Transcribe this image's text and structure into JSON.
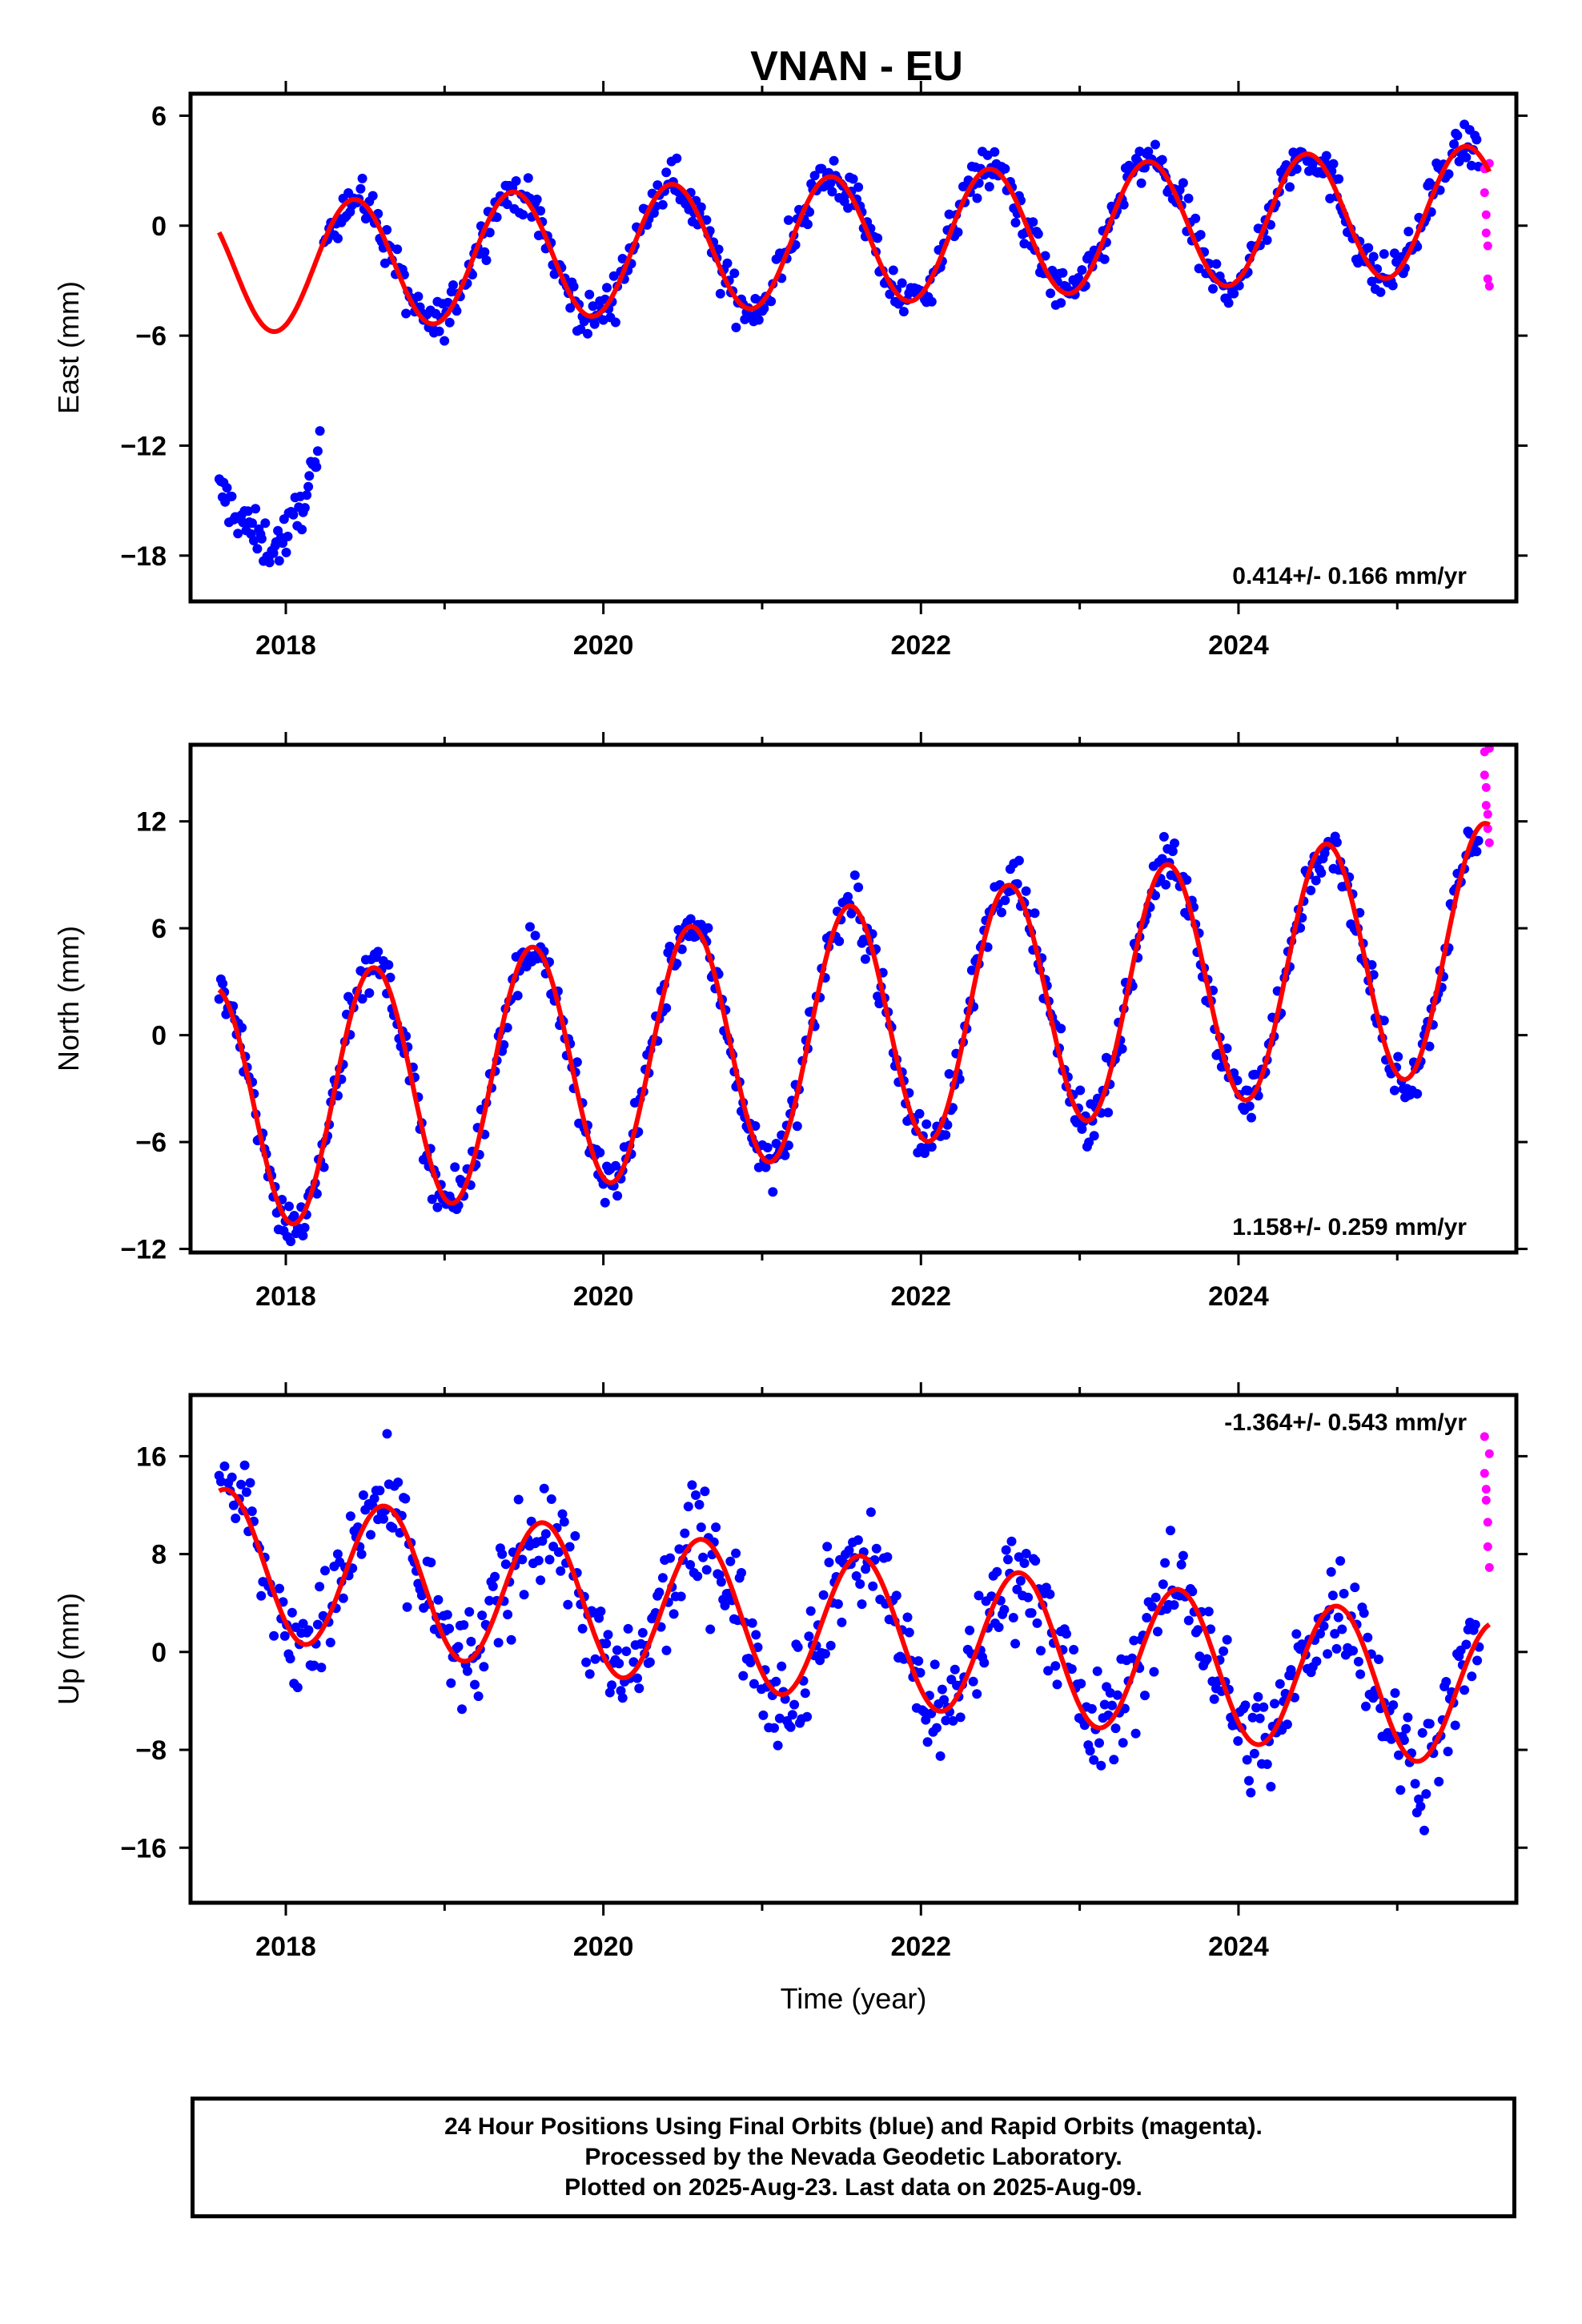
{
  "title": "VNAN - EU",
  "colors": {
    "final": "#0000ff",
    "rapid": "#ff00ff",
    "fit": "#ff0000",
    "frame": "#000000"
  },
  "footer": {
    "line1": "24 Hour Positions Using Final Orbits (blue) and Rapid Orbits (magenta).",
    "line2": "Processed by the Nevada Geodetic Laboratory.",
    "line3": "Plotted on 2025-Aug-23. Last data on 2025-Aug-09."
  },
  "chart_data": [
    {
      "type": "scatter",
      "component": "east",
      "ylabel": "East (mm)",
      "xlabel": "",
      "xlim": [
        2017.4,
        2025.75
      ],
      "ylim": [
        -20.5,
        7.2
      ],
      "xticks": [
        2018,
        2020,
        2022,
        2024
      ],
      "yticks": [
        -18,
        -12,
        -6,
        0,
        6
      ],
      "rate_label": "0.414+/- 0.166 mm/yr",
      "rate_position": "bottom-right",
      "fit": {
        "a0": -0.8,
        "trend": 0.414,
        "t0": 2021.5,
        "amp": 3.5,
        "peak": 2018.43,
        "period": 1.0
      },
      "series": [
        {
          "kind": "final",
          "segments": [
            {
              "x": [
                2017.58,
                2017.63,
                2017.68,
                2017.73,
                2017.78,
                2017.83,
                2017.88,
                2017.93,
                2017.98,
                2018.03,
                2018.08,
                2018.13,
                2018.18,
                2018.22
              ],
              "y": [
                -14.5,
                -15.0,
                -15.6,
                -16.1,
                -16.6,
                -17.1,
                -17.4,
                -17.5,
                -17.1,
                -16.5,
                -15.6,
                -14.5,
                -13.3,
                -12.5
              ],
              "scatter": 0.9
            },
            {
              "x_start": 2018.24,
              "x_end": 2025.52,
              "step": 0.011,
              "offset": 0.0,
              "scatter": 0.85
            }
          ]
        },
        {
          "kind": "rapid",
          "x": [
            2025.55,
            2025.55,
            2025.56,
            2025.56,
            2025.57,
            2025.57,
            2025.58,
            2025.58
          ],
          "y": [
            3.1,
            1.8,
            0.6,
            -0.4,
            -1.1,
            -2.9,
            -3.3,
            3.4
          ]
        }
      ]
    },
    {
      "type": "scatter",
      "component": "north",
      "ylabel": "North (mm)",
      "xlabel": "",
      "xlim": [
        2017.4,
        2025.75
      ],
      "ylim": [
        -12.2,
        16.3
      ],
      "xticks": [
        2018,
        2020,
        2022,
        2024
      ],
      "yticks": [
        -12,
        -6,
        0,
        6,
        12
      ],
      "rate_label": "1.158+/- 0.259 mm/yr",
      "rate_position": "bottom-right",
      "fit": {
        "a0": 0.3,
        "trend": 1.158,
        "t0": 2021.5,
        "amp": 6.9,
        "peak": 2018.55,
        "period": 1.0
      },
      "series": [
        {
          "kind": "final",
          "segments": [
            {
              "x_start": 2017.58,
              "x_end": 2025.52,
              "step": 0.011,
              "offset": 0.0,
              "scatter": 1.0
            }
          ]
        },
        {
          "kind": "rapid",
          "x": [
            2025.55,
            2025.55,
            2025.56,
            2025.56,
            2025.57,
            2025.57,
            2025.58,
            2025.58
          ],
          "y": [
            15.9,
            14.6,
            13.9,
            12.9,
            12.4,
            11.6,
            10.8,
            16.1
          ]
        }
      ]
    },
    {
      "type": "scatter",
      "component": "up",
      "ylabel": "Up (mm)",
      "xlabel": "Time (year)",
      "xlim": [
        2017.4,
        2025.75
      ],
      "ylim": [
        -20.5,
        21.0
      ],
      "xticks": [
        2018,
        2020,
        2022,
        2024
      ],
      "yticks": [
        -16,
        -8,
        0,
        8,
        16
      ],
      "rate_label": "-1.364+/- 0.543 mm/yr",
      "rate_position": "top-right",
      "fit": {
        "a0": 2.0,
        "trend": -1.364,
        "t0": 2021.5,
        "amp": 6.0,
        "peak": 2018.62,
        "period": 1.0
      },
      "series": [
        {
          "kind": "final",
          "segments": [
            {
              "x_start": 2017.58,
              "x_end": 2025.52,
              "step": 0.0115,
              "offset": 0.0,
              "scatter": 3.1
            }
          ]
        },
        {
          "kind": "rapid",
          "x": [
            2025.55,
            2025.55,
            2025.56,
            2025.56,
            2025.57,
            2025.57,
            2025.58,
            2025.58
          ],
          "y": [
            17.6,
            14.6,
            13.3,
            12.4,
            10.6,
            8.6,
            6.9,
            16.2
          ]
        }
      ]
    }
  ]
}
